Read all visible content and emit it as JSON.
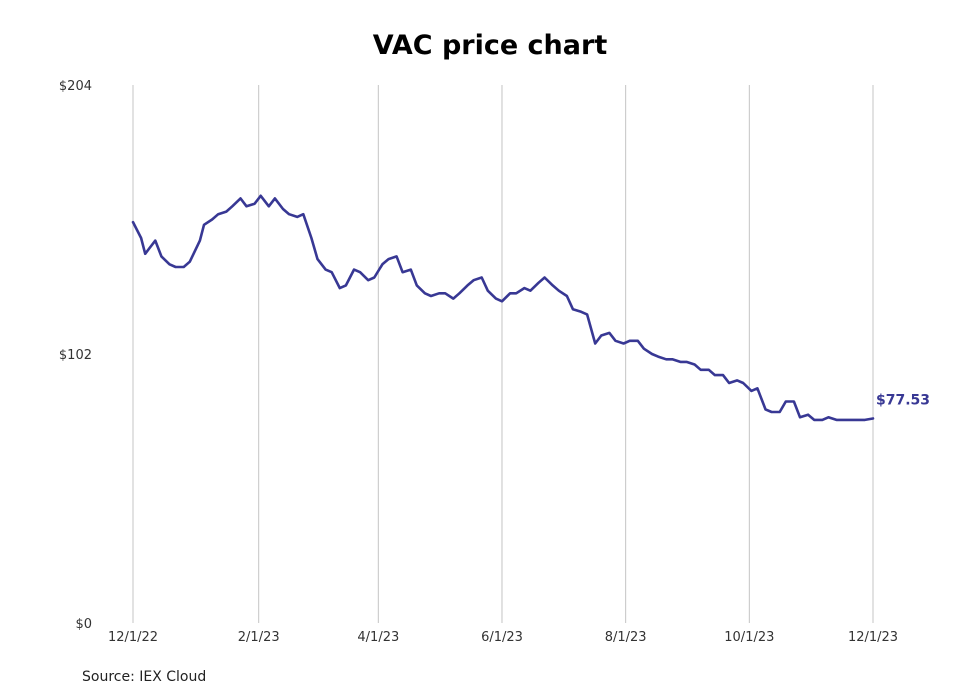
{
  "chart_data": {
    "type": "line",
    "title": "VAC price chart",
    "source": "Source: IEX Cloud",
    "xlabel": "",
    "ylabel": "",
    "x_ticks": [
      "12/1/22",
      "2/1/23",
      "4/1/23",
      "6/1/23",
      "8/1/23",
      "10/1/23",
      "12/1/23"
    ],
    "y_ticks": [
      "$0",
      "$102",
      "$204"
    ],
    "ylim": [
      0,
      204
    ],
    "xlim": [
      "2022-12-01",
      "2023-12-01"
    ],
    "grid": "vertical",
    "last_value_label": "$77.53",
    "line_color": "#383894",
    "series": [
      {
        "x": [
          "2022-12-01",
          "2022-12-05",
          "2022-12-07",
          "2022-12-09",
          "2022-12-12",
          "2022-12-15",
          "2022-12-19",
          "2022-12-22",
          "2022-12-26",
          "2022-12-29",
          "2023-01-03",
          "2023-01-05",
          "2023-01-09",
          "2023-01-12",
          "2023-01-16",
          "2023-01-19",
          "2023-01-23",
          "2023-01-26",
          "2023-01-30",
          "2023-02-02",
          "2023-02-06",
          "2023-02-09",
          "2023-02-13",
          "2023-02-16",
          "2023-02-20",
          "2023-02-23",
          "2023-02-27",
          "2023-03-02",
          "2023-03-06",
          "2023-03-09",
          "2023-03-13",
          "2023-03-16",
          "2023-03-20",
          "2023-03-23",
          "2023-03-27",
          "2023-03-30",
          "2023-04-03",
          "2023-04-06",
          "2023-04-10",
          "2023-04-13",
          "2023-04-17",
          "2023-04-20",
          "2023-04-24",
          "2023-04-27",
          "2023-05-01",
          "2023-05-04",
          "2023-05-08",
          "2023-05-11",
          "2023-05-15",
          "2023-05-18",
          "2023-05-22",
          "2023-05-25",
          "2023-05-29",
          "2023-06-01",
          "2023-06-05",
          "2023-06-08",
          "2023-06-12",
          "2023-06-15",
          "2023-06-19",
          "2023-06-22",
          "2023-06-26",
          "2023-06-29",
          "2023-07-03",
          "2023-07-06",
          "2023-07-10",
          "2023-07-13",
          "2023-07-17",
          "2023-07-20",
          "2023-07-24",
          "2023-07-27",
          "2023-07-31",
          "2023-08-03",
          "2023-08-07",
          "2023-08-10",
          "2023-08-14",
          "2023-08-17",
          "2023-08-21",
          "2023-08-24",
          "2023-08-28",
          "2023-08-31",
          "2023-09-04",
          "2023-09-07",
          "2023-09-11",
          "2023-09-14",
          "2023-09-18",
          "2023-09-21",
          "2023-09-25",
          "2023-09-28",
          "2023-10-02",
          "2023-10-05",
          "2023-10-09",
          "2023-10-12",
          "2023-10-16",
          "2023-10-19",
          "2023-10-23",
          "2023-10-26",
          "2023-10-30",
          "2023-11-02",
          "2023-11-06",
          "2023-11-09",
          "2023-11-13",
          "2023-11-16",
          "2023-11-20",
          "2023-11-23",
          "2023-11-27",
          "2023-12-01"
        ],
        "values": [
          152,
          146,
          140,
          142,
          145,
          139,
          136,
          135,
          135,
          137,
          145,
          151,
          153,
          155,
          156,
          158,
          161,
          158,
          159,
          162,
          158,
          161,
          157,
          155,
          154,
          155,
          146,
          138,
          134,
          133,
          127,
          128,
          134,
          133,
          130,
          131,
          136,
          138,
          139,
          133,
          134,
          128,
          125,
          124,
          125,
          125,
          123,
          125,
          128,
          130,
          131,
          126,
          123,
          122,
          125,
          125,
          127,
          126,
          129,
          131,
          128,
          126,
          124,
          119,
          118,
          117,
          106,
          109,
          110,
          107,
          106,
          107,
          107,
          104,
          102,
          101,
          100,
          100,
          99,
          99,
          98,
          96,
          96,
          94,
          94,
          91,
          92,
          91,
          88,
          89,
          81,
          80,
          80,
          84,
          84,
          78,
          79,
          77,
          77,
          78,
          77,
          77,
          77,
          77,
          77,
          77.53
        ]
      }
    ]
  }
}
